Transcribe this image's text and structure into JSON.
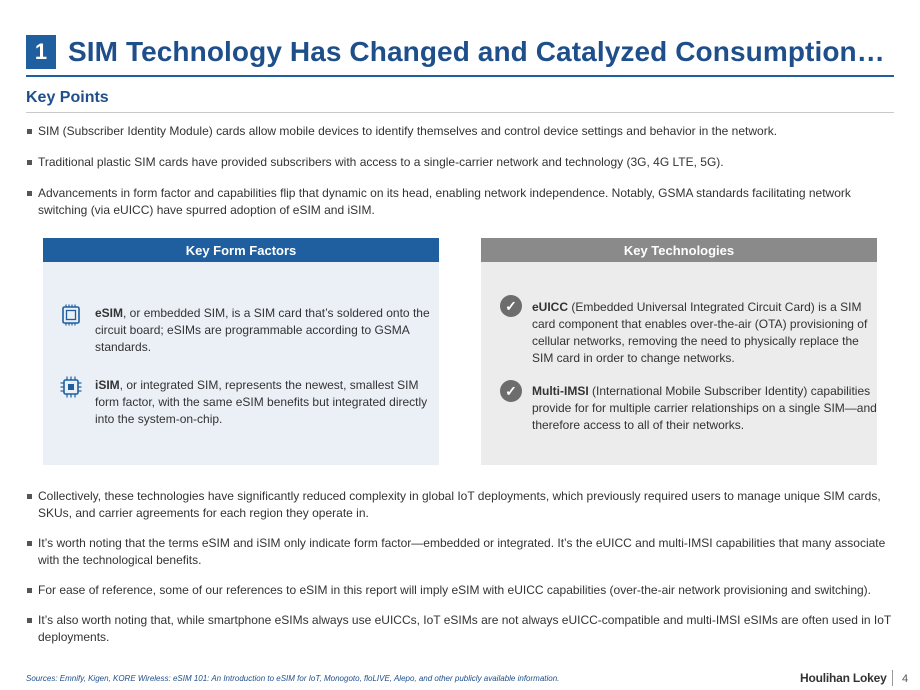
{
  "slide": {
    "number": "1",
    "title": "SIM Technology Has Changed and Catalyzed Consumption…"
  },
  "key_points": {
    "heading": "Key Points",
    "bullets": [
      "SIM (Subscriber Identity Module) cards allow mobile devices to identify themselves and control device settings and behavior in the network.",
      "Traditional plastic SIM cards have provided subscribers with access to a single-carrier network and technology (3G, 4G LTE, 5G).",
      "Advancements in form factor and capabilities flip that dynamic on its head, enabling network independence. Notably, GSMA standards facilitating network switching (via eUICC) have spurred adoption of eSIM and iSIM."
    ]
  },
  "form_factors": {
    "header": "Key Form Factors",
    "items": [
      {
        "term": "eSIM",
        "text": ", or embedded SIM, is a SIM card that’s soldered onto the circuit board; eSIMs are programmable according to GSMA standards.",
        "icon": "sim-card-icon"
      },
      {
        "term": "iSIM",
        "text": ", or integrated SIM, represents the newest, smallest SIM form factor, with the same eSIM benefits but integrated directly into the system-on-chip.",
        "icon": "chip-icon"
      }
    ]
  },
  "technologies": {
    "header": "Key Technologies",
    "check_glyph": "✓",
    "items": [
      {
        "term": "eUICC",
        "text": " (Embedded Universal Integrated Circuit Card) is a SIM card component that enables over-the-air (OTA) provisioning of cellular networks, removing the need to physically replace the SIM card in order to change networks."
      },
      {
        "term": "Multi-IMSI",
        "text": " (International Mobile Subscriber Identity) capabilities provide for for multiple carrier relationships on a single SIM—and therefore access to all of their networks."
      }
    ]
  },
  "summary_bullets": [
    "Collectively, these technologies have significantly reduced complexity in global IoT deployments, which previously required users to manage unique SIM cards, SKUs, and carrier agreements for each region they operate in.",
    "It’s worth noting that the terms eSIM and iSIM only indicate form factor—embedded or integrated. It’s the eUICC and multi-IMSI capabilities that many associate with the technological benefits.",
    "For ease of reference, some of our references to eSIM in this report will imply eSIM with eUICC capabilities (over-the-air network provisioning and switching).",
    "It’s also worth noting that, while smartphone eSIMs always use eUICCs, IoT eSIMs are not always eUICC-compatible and multi-IMSI eSIMs are often used in IoT deployments."
  ],
  "footer": {
    "sources": "Sources: Emnify, Kigen, KORE Wireless: eSIM 101: An Introduction to eSIM for IoT, Monogoto, floLIVE, Alepo, and other publicly available information.",
    "logo": "Houlihan Lokey",
    "page": "4"
  },
  "colors": {
    "primary_blue": "#1f5fa0",
    "title_blue": "#1f4f8a",
    "left_panel_bg": "#eaf0f6",
    "right_panel_bg": "#ececec",
    "right_header_gray": "#8a8a8a"
  }
}
